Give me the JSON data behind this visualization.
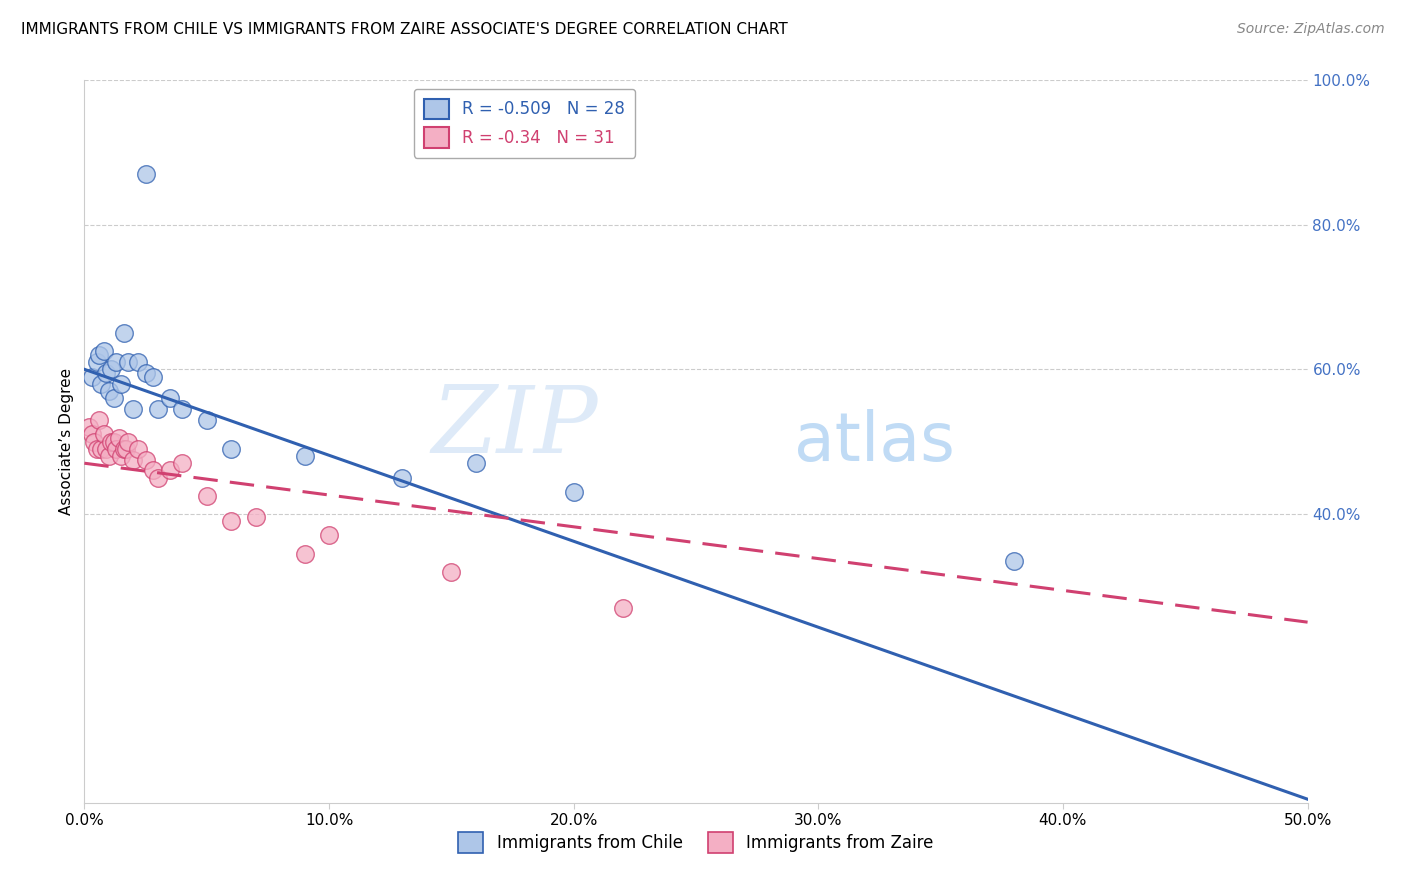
{
  "title": "IMMIGRANTS FROM CHILE VS IMMIGRANTS FROM ZAIRE ASSOCIATE'S DEGREE CORRELATION CHART",
  "source": "Source: ZipAtlas.com",
  "ylabel": "Associate’s Degree",
  "xlim": [
    0.0,
    0.5
  ],
  "ylim": [
    0.0,
    1.0
  ],
  "xticks": [
    0.0,
    0.1,
    0.2,
    0.3,
    0.4,
    0.5
  ],
  "xtick_labels": [
    "0.0%",
    "10.0%",
    "20.0%",
    "30.0%",
    "40.0%",
    "50.0%"
  ],
  "yticks": [
    0.4,
    0.6,
    0.8,
    1.0
  ],
  "ytick_labels": [
    "40.0%",
    "60.0%",
    "80.0%",
    "100.0%"
  ],
  "chile_R": -0.509,
  "chile_N": 28,
  "zaire_R": -0.34,
  "zaire_N": 31,
  "chile_color": "#aec6e8",
  "zaire_color": "#f4afc4",
  "chile_line_color": "#3060b0",
  "zaire_line_color": "#d04070",
  "background_color": "#ffffff",
  "grid_color": "#cccccc",
  "right_tick_color": "#4472c4",
  "watermark_zip": "ZIP",
  "watermark_atlas": "atlas",
  "chile_x": [
    0.003,
    0.005,
    0.006,
    0.007,
    0.008,
    0.009,
    0.01,
    0.011,
    0.012,
    0.013,
    0.015,
    0.016,
    0.018,
    0.02,
    0.022,
    0.025,
    0.028,
    0.03,
    0.035,
    0.04,
    0.05,
    0.06,
    0.09,
    0.13,
    0.16,
    0.2,
    0.38,
    0.025
  ],
  "chile_y": [
    0.59,
    0.61,
    0.62,
    0.58,
    0.625,
    0.595,
    0.57,
    0.6,
    0.56,
    0.61,
    0.58,
    0.65,
    0.61,
    0.545,
    0.61,
    0.595,
    0.59,
    0.545,
    0.56,
    0.545,
    0.53,
    0.49,
    0.48,
    0.45,
    0.47,
    0.43,
    0.335,
    0.87
  ],
  "zaire_x": [
    0.002,
    0.003,
    0.004,
    0.005,
    0.006,
    0.007,
    0.008,
    0.009,
    0.01,
    0.011,
    0.012,
    0.013,
    0.014,
    0.015,
    0.016,
    0.017,
    0.018,
    0.02,
    0.022,
    0.025,
    0.028,
    0.03,
    0.035,
    0.04,
    0.05,
    0.06,
    0.07,
    0.09,
    0.1,
    0.15,
    0.22
  ],
  "zaire_y": [
    0.52,
    0.51,
    0.5,
    0.49,
    0.53,
    0.49,
    0.51,
    0.49,
    0.48,
    0.5,
    0.5,
    0.49,
    0.505,
    0.48,
    0.49,
    0.49,
    0.5,
    0.475,
    0.49,
    0.475,
    0.46,
    0.45,
    0.46,
    0.47,
    0.425,
    0.39,
    0.395,
    0.345,
    0.37,
    0.32,
    0.27
  ],
  "chile_line_x": [
    0.0,
    0.5
  ],
  "chile_line_y": [
    0.6,
    0.005
  ],
  "zaire_line_x": [
    0.0,
    0.5
  ],
  "zaire_line_y": [
    0.47,
    0.25
  ],
  "title_fontsize": 11,
  "source_fontsize": 10,
  "axis_label_fontsize": 11,
  "tick_fontsize": 11,
  "legend_fontsize": 12
}
